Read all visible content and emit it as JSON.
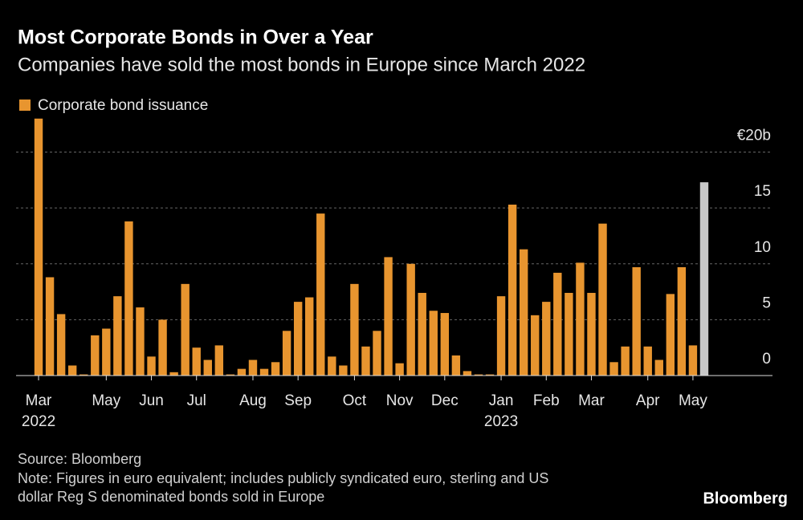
{
  "chart_data": {
    "type": "bar",
    "title": "Most Corporate Bonds in Over a Year",
    "subtitle": "Companies have sold the most bonds in Europe since March 2022",
    "series": [
      {
        "name": "Corporate bond issuance",
        "color": "#e8952f",
        "values": [
          23.0,
          8.8,
          5.5,
          0.9,
          0.1,
          3.6,
          4.2,
          7.1,
          13.8,
          6.1,
          1.7,
          5.0,
          0.3,
          8.2,
          2.5,
          1.4,
          2.7,
          0.1,
          0.6,
          1.4,
          0.6,
          1.2,
          4.0,
          6.6,
          7.0,
          14.5,
          1.7,
          0.9,
          8.2,
          2.6,
          4.0,
          10.6,
          1.1,
          10.0,
          7.4,
          5.8,
          5.6,
          1.8,
          0.4,
          0.1,
          0.1,
          7.1,
          15.3,
          11.3,
          5.4,
          6.6,
          9.2,
          7.4,
          10.1,
          7.4,
          13.6,
          1.2,
          2.6,
          9.7,
          2.6,
          1.4,
          7.3,
          9.7,
          2.7,
          17.3
        ]
      }
    ],
    "highlight": {
      "index": 59,
      "color": "#c8c8c8"
    },
    "categories": [
      "Mar",
      null,
      null,
      null,
      null,
      null,
      "May",
      null,
      null,
      null,
      "Jun",
      null,
      null,
      null,
      "Jul",
      null,
      null,
      null,
      null,
      "Aug",
      null,
      null,
      null,
      "Sep",
      null,
      null,
      null,
      null,
      "Oct",
      null,
      null,
      null,
      "Nov",
      null,
      null,
      null,
      "Dec",
      null,
      null,
      null,
      null,
      "Jan",
      null,
      null,
      null,
      "Feb",
      null,
      null,
      null,
      "Mar",
      null,
      null,
      null,
      null,
      "Apr",
      null,
      null,
      null,
      "May",
      null
    ],
    "category_years": [
      {
        "index": 0,
        "label": "2022"
      },
      {
        "index": 41,
        "label": "2023"
      }
    ],
    "ylim": [
      0,
      23.2
    ],
    "yticks": [
      0,
      5,
      10,
      15,
      {
        "value": 20,
        "label": "€20b"
      }
    ],
    "grid": true,
    "source": "Source: Bloomberg",
    "note": [
      "Note: Figures in euro equivalent; includes publicly syndicated euro, sterling and US",
      "dollar Reg S denominated bonds sold in Europe"
    ],
    "brand": "Bloomberg"
  }
}
